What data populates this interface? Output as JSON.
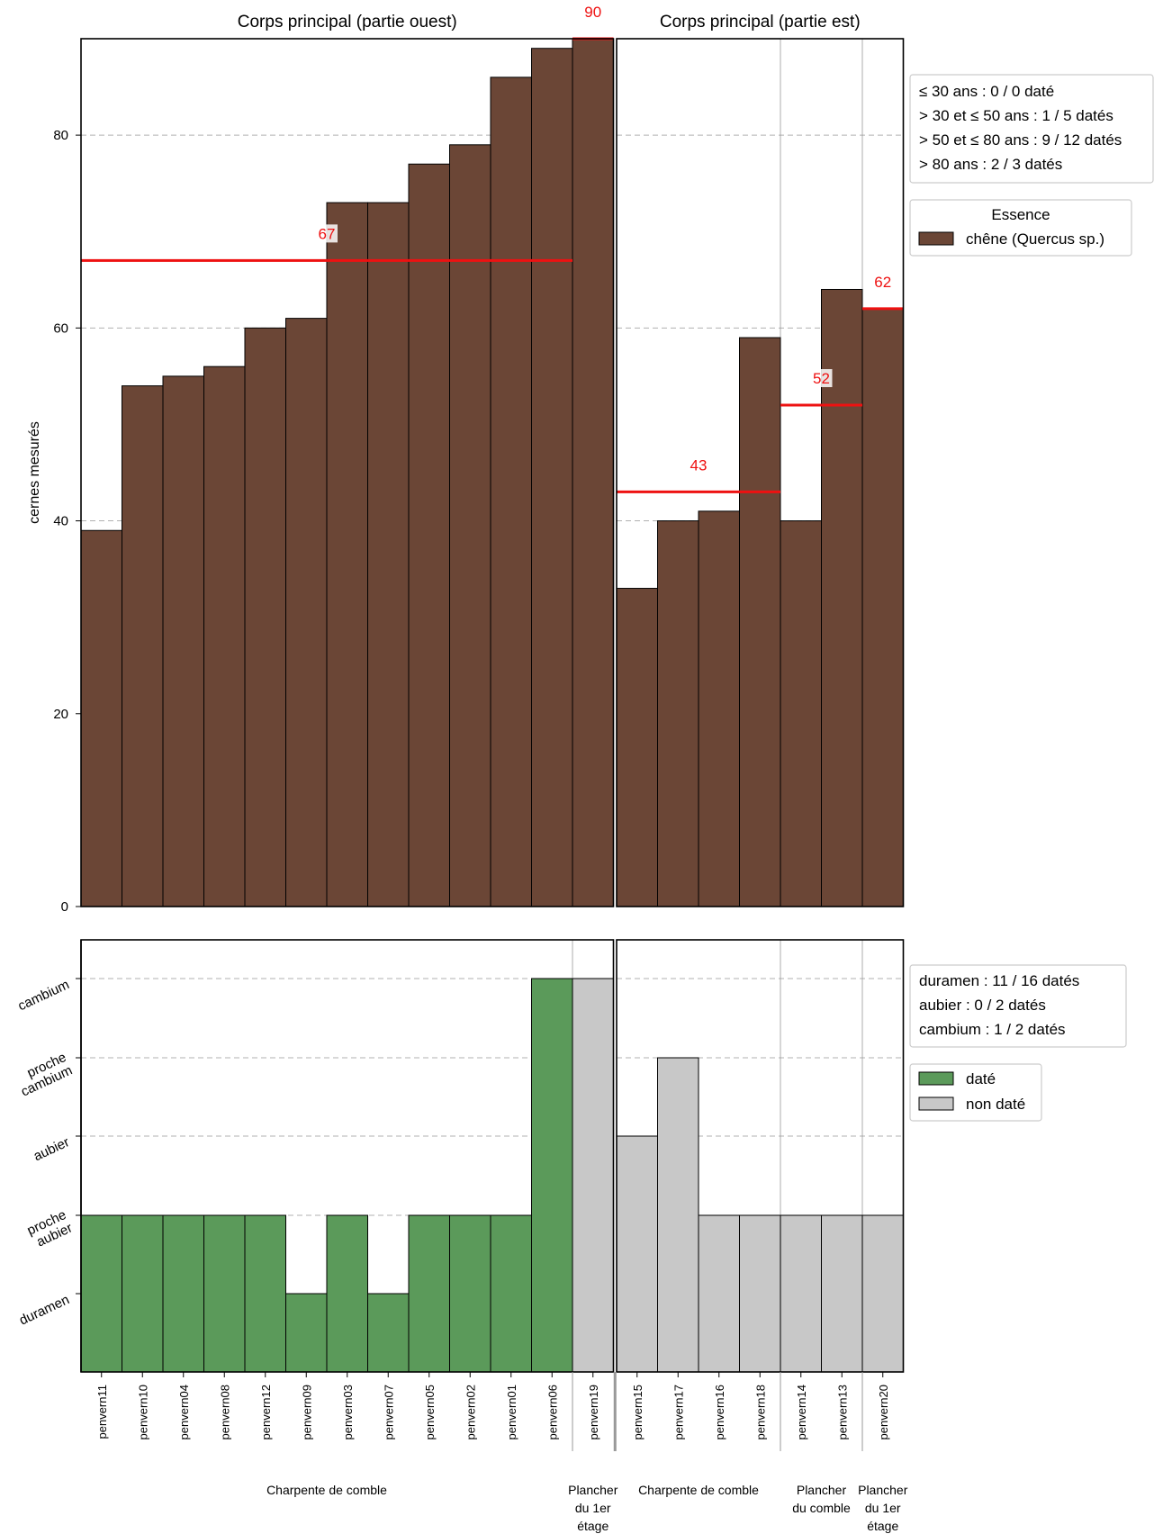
{
  "chart_data": [
    {
      "type": "bar",
      "panel": "top",
      "ylabel": "cernes mesurés",
      "ylim": [
        0,
        90
      ],
      "yticks": [
        0,
        20,
        40,
        60,
        80
      ],
      "grid": "horizontal dashed",
      "bar_color": "#6b4636",
      "groups": [
        {
          "title": "Corps principal (partie ouest)",
          "categories": [
            "penvern11",
            "penvern10",
            "penvern04",
            "penvern08",
            "penvern12",
            "penvern09",
            "penvern03",
            "penvern07",
            "penvern05",
            "penvern02",
            "penvern01",
            "penvern06",
            "penvern19"
          ],
          "values": [
            39,
            54,
            55,
            56,
            60,
            61,
            73,
            73,
            77,
            79,
            86,
            89,
            90
          ],
          "means": [
            {
              "from": 0,
              "to": 12,
              "value": 67,
              "label": "67"
            },
            {
              "from": 12,
              "to": 13,
              "value": 90,
              "label": "90"
            }
          ]
        },
        {
          "title": "Corps principal (partie est)",
          "categories": [
            "penvern15",
            "penvern17",
            "penvern16",
            "penvern18",
            "penvern14",
            "penvern13",
            "penvern20"
          ],
          "values": [
            33,
            40,
            41,
            59,
            40,
            64,
            62
          ],
          "means": [
            {
              "from": 0,
              "to": 4,
              "value": 43,
              "label": "43"
            },
            {
              "from": 4,
              "to": 6,
              "value": 52,
              "label": "52"
            },
            {
              "from": 6,
              "to": 7,
              "value": 62,
              "label": "62"
            }
          ]
        }
      ],
      "legend_counts": {
        "lines": [
          "≤ 30 ans : 0 / 0 daté",
          "> 30 et ≤ 50 ans : 1 / 5 datés",
          "> 50 et ≤ 80 ans : 9 / 12 datés",
          "> 80 ans : 2 / 3 datés"
        ],
        "placement": "right"
      },
      "legend_species": {
        "title": "Essence",
        "entries": [
          {
            "label": "chêne (Quercus sp.)",
            "color": "#6b4636"
          }
        ],
        "placement": "right"
      }
    },
    {
      "type": "bar",
      "panel": "bottom",
      "ycategories": [
        "duramen",
        "proche aubier",
        "aubier",
        "proche cambium",
        "cambium"
      ],
      "ytick_labels": [
        [
          "duramen"
        ],
        [
          "proche",
          "aubier"
        ],
        [
          "aubier"
        ],
        [
          "proche",
          "cambium"
        ],
        [
          "cambium"
        ]
      ],
      "grid": "horizontal dashed",
      "colors": {
        "daté": "#5b9a5a",
        "non daté": "#c8c8c8"
      },
      "groups": [
        {
          "categories": [
            "penvern11",
            "penvern10",
            "penvern04",
            "penvern08",
            "penvern12",
            "penvern09",
            "penvern03",
            "penvern07",
            "penvern05",
            "penvern02",
            "penvern01",
            "penvern06",
            "penvern19"
          ],
          "levels": [
            2,
            2,
            2,
            2,
            2,
            1,
            2,
            1,
            2,
            2,
            2,
            5,
            5
          ],
          "status": [
            "daté",
            "daté",
            "daté",
            "daté",
            "daté",
            "daté",
            "daté",
            "daté",
            "daté",
            "daté",
            "daté",
            "daté",
            "non daté"
          ],
          "locations": [
            {
              "label": [
                "Charpente de comble"
              ],
              "from": 0,
              "to": 12
            },
            {
              "label": [
                "Plancher",
                "du 1er",
                "étage"
              ],
              "from": 12,
              "to": 13
            }
          ]
        },
        {
          "categories": [
            "penvern15",
            "penvern17",
            "penvern16",
            "penvern18",
            "penvern14",
            "penvern13",
            "penvern20"
          ],
          "levels": [
            3,
            4,
            2,
            2,
            2,
            2,
            2
          ],
          "status": [
            "non daté",
            "non daté",
            "non daté",
            "non daté",
            "non daté",
            "non daté",
            "non daté"
          ],
          "locations": [
            {
              "label": [
                "Charpente de comble"
              ],
              "from": 0,
              "to": 4
            },
            {
              "label": [
                "Plancher",
                "du comble"
              ],
              "from": 4,
              "to": 6
            },
            {
              "label": [
                "Plancher",
                "du 1er",
                "étage"
              ],
              "from": 6,
              "to": 7
            }
          ]
        }
      ],
      "legend_counts": {
        "lines": [
          "duramen : 11 / 16 datés",
          "aubier : 0 / 2 datés",
          "cambium : 1 / 2 datés"
        ],
        "placement": "right"
      },
      "legend_status": {
        "entries": [
          {
            "label": "daté",
            "color": "#5b9a5a"
          },
          {
            "label": "non daté",
            "color": "#c8c8c8"
          }
        ],
        "placement": "right"
      }
    }
  ],
  "colors": {
    "mean_line": "#ee1111",
    "bar_edge": "#000000",
    "grid": "#b0b0b0"
  }
}
